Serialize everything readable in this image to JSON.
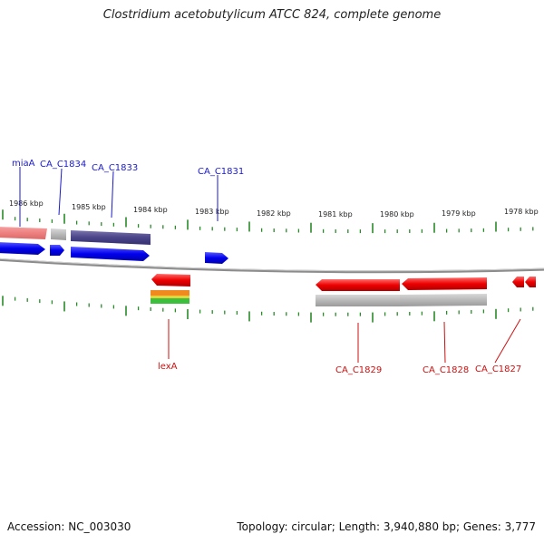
{
  "title": "Clostridium acetobutylicum ATCC 824, complete genome",
  "accession": "Accession: NC_003030",
  "summary": "Topology: circular; Length: 3,940,880 bp; Genes: 3,777",
  "colors": {
    "forward_gene": "#0000ee",
    "forward_label": "#1a1acc",
    "reverse_gene": "#ee0000",
    "reverse_label": "#cc1111",
    "tick": "#2a8a2a",
    "backbone": "#888888"
  },
  "scale": [
    {
      "label": "1986 kbp"
    },
    {
      "label": "1985 kbp"
    },
    {
      "label": "1984 kbp"
    },
    {
      "label": "1983 kbp"
    },
    {
      "label": "1982 kbp"
    },
    {
      "label": "1981 kbp"
    },
    {
      "label": "1980 kbp"
    },
    {
      "label": "1979 kbp"
    },
    {
      "label": "1978 kbp"
    }
  ],
  "forward_labels": [
    {
      "name": "miaA"
    },
    {
      "name": "CA_C1834"
    },
    {
      "name": "CA_C1833"
    },
    {
      "name": "CA_C1831"
    }
  ],
  "reverse_labels": [
    {
      "name": "lexA"
    },
    {
      "name": "CA_C1829"
    },
    {
      "name": "CA_C1828"
    },
    {
      "name": "CA_C1827"
    }
  ]
}
